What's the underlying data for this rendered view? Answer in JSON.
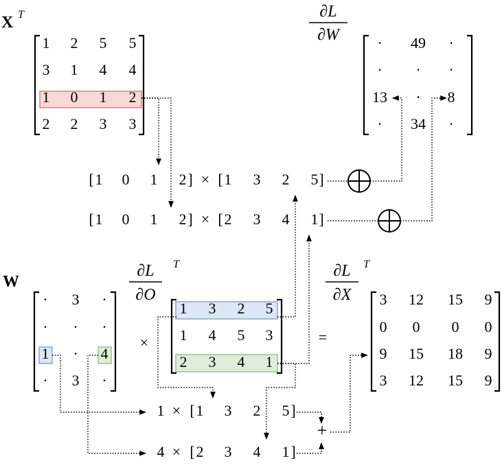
{
  "labels": {
    "xt_base": "X",
    "xt_sup": "T",
    "dldw_num": "∂L",
    "dldw_den": "∂W",
    "w": "W",
    "dldo_num": "∂L",
    "dldo_den": "∂O",
    "dldo_sup": "T",
    "dldx_num": "∂L",
    "dldx_den": "∂X",
    "dldx_sup": "T",
    "times": "×",
    "equals": "=",
    "plus": "+",
    "oplus": "⊕"
  },
  "matrices": {
    "xt": [
      [
        "1",
        "2",
        "5",
        "5"
      ],
      [
        "3",
        "1",
        "4",
        "4"
      ],
      [
        "1",
        "0",
        "1",
        "2"
      ],
      [
        "2",
        "2",
        "3",
        "3"
      ]
    ],
    "dldw": [
      [
        "·",
        "49",
        "·"
      ],
      [
        "·",
        "·",
        "·"
      ],
      [
        "13",
        "·",
        "8"
      ],
      [
        "·",
        "34",
        "·"
      ]
    ],
    "w": [
      [
        "·",
        "3",
        "·"
      ],
      [
        "·",
        "·",
        "·"
      ],
      [
        "1",
        "·",
        "4"
      ],
      [
        "·",
        "3",
        "·"
      ]
    ],
    "dldo": [
      [
        "1",
        "3",
        "2",
        "5"
      ],
      [
        "1",
        "4",
        "5",
        "3"
      ],
      [
        "2",
        "3",
        "4",
        "1"
      ]
    ],
    "dldx": [
      [
        "3",
        "12",
        "15",
        "9"
      ],
      [
        "0",
        "0",
        "0",
        "0"
      ],
      [
        "9",
        "15",
        "18",
        "9"
      ],
      [
        "3",
        "12",
        "15",
        "9"
      ]
    ]
  },
  "products": {
    "row1_left": [
      "1",
      "0",
      "1",
      "2"
    ],
    "row1_right": [
      "1",
      "3",
      "2",
      "5"
    ],
    "row2_left": [
      "1",
      "0",
      "1",
      "2"
    ],
    "row2_right": [
      "2",
      "3",
      "4",
      "1"
    ],
    "sum1_scalar": "1",
    "sum1_vec": [
      "1",
      "3",
      "2",
      "5"
    ],
    "sum2_scalar": "4",
    "sum2_vec": [
      "2",
      "3",
      "4",
      "1"
    ]
  },
  "colors": {
    "highlight_red": "#f9d9d7",
    "highlight_blue": "#dde7f5",
    "highlight_green": "#dfeed9"
  }
}
